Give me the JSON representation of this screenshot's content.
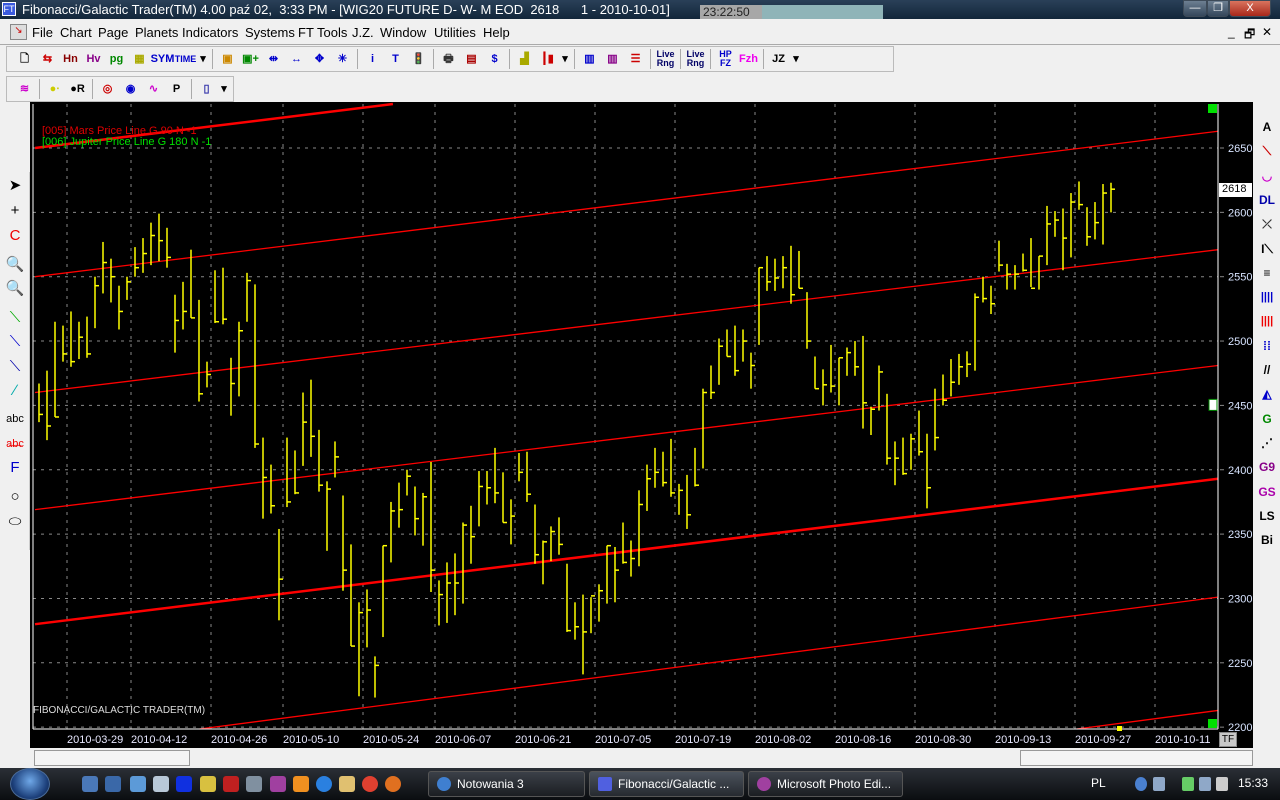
{
  "window": {
    "title": "Fibonacci/Galactic Trader(TM) 4.00 paź 02,  3:33 PM - [WIG20 FUTURE D- W- M EOD  2618      1 - 2010-10-01]",
    "clock": "23:22:50",
    "minimize": "—",
    "restore": "❐",
    "close": "X"
  },
  "menu": {
    "items": [
      "File",
      "Chart",
      "Page",
      "Planets",
      "Indicators",
      "Systems",
      "FT Tools",
      "J.Z.",
      "Window",
      "Utilities",
      "Help"
    ],
    "mdi_minimize": "_",
    "mdi_restore": "🗗",
    "mdi_close": "✕"
  },
  "toolbar1": [
    {
      "icon": "new-chart-icon",
      "glyph": "🗋",
      "color": "#000"
    },
    {
      "icon": "compare-icon",
      "glyph": "⇆",
      "color": "#c00"
    },
    {
      "icon": "hn-bars-icon",
      "glyph": "Hn",
      "color": "#800"
    },
    {
      "icon": "hv-bars-icon",
      "glyph": "Hv",
      "color": "#808"
    },
    {
      "icon": "page-icon",
      "glyph": "pg",
      "color": "#080"
    },
    {
      "icon": "grid-icon",
      "glyph": "▦",
      "color": "#aa0"
    },
    {
      "icon": "symbol-icon",
      "glyph": "SYM",
      "color": "#00c"
    },
    {
      "icon": "time-icon",
      "glyph": "TIME",
      "color": "#00c"
    },
    {
      "icon": "dropdown-icon",
      "glyph": "▾",
      "color": "#000"
    },
    {
      "sep": true
    },
    {
      "icon": "layers-icon",
      "glyph": "▣",
      "color": "#c80"
    },
    {
      "icon": "add-layer-icon",
      "glyph": "▣+",
      "color": "#080"
    },
    {
      "icon": "compress-icon",
      "glyph": "⇹",
      "color": "#00c"
    },
    {
      "icon": "expand-icon",
      "glyph": "↔",
      "color": "#00c"
    },
    {
      "icon": "move-icon",
      "glyph": "✥",
      "color": "#00c"
    },
    {
      "icon": "crosshair-icon",
      "glyph": "✳",
      "color": "#00c"
    },
    {
      "sep": true
    },
    {
      "icon": "info-icon",
      "glyph": "i",
      "color": "#00c"
    },
    {
      "icon": "text-icon",
      "glyph": "T",
      "color": "#00c"
    },
    {
      "icon": "traffic-light-icon",
      "glyph": "🚦",
      "color": "#333"
    },
    {
      "sep": true
    },
    {
      "icon": "print-icon",
      "glyph": "🖶",
      "color": "#333"
    },
    {
      "icon": "calendar-icon",
      "glyph": "▤",
      "color": "#a00"
    },
    {
      "icon": "dollar-icon",
      "glyph": "$",
      "color": "#00c"
    },
    {
      "sep": true
    },
    {
      "icon": "ruler-icon",
      "glyph": "▟",
      "color": "#aa0"
    },
    {
      "icon": "candle-icon",
      "glyph": "┃▮",
      "color": "#c00"
    },
    {
      "icon": "dropdown-icon",
      "glyph": "▾",
      "color": "#000"
    },
    {
      "sep": true
    },
    {
      "icon": "bar-chart-window-icon",
      "glyph": "▥",
      "color": "#00c"
    },
    {
      "icon": "bar-chart-window2-icon",
      "glyph": "▥",
      "color": "#808"
    },
    {
      "icon": "levels-icon",
      "glyph": "☰",
      "color": "#c00"
    },
    {
      "sep": true
    },
    {
      "icon": "live-range-red-icon",
      "glyph": "Live Rng",
      "color": "#006"
    },
    {
      "sep": true
    },
    {
      "icon": "live-range-blue-icon",
      "glyph": "Live Rng",
      "color": "#006"
    },
    {
      "sep": true
    },
    {
      "icon": "hp-fz-icon",
      "glyph": "HP FZ",
      "color": "#00c"
    },
    {
      "icon": "fzh-icon",
      "glyph": "Fzh",
      "color": "#e0e"
    },
    {
      "sep": true
    },
    {
      "icon": "jz-icon",
      "glyph": "JZ",
      "color": "#000"
    },
    {
      "icon": "dropdown-icon",
      "glyph": "▾",
      "color": "#000"
    }
  ],
  "toolbar2": [
    {
      "icon": "planet-lines-icon",
      "glyph": "≋",
      "color": "#c0c"
    },
    {
      "sep": true
    },
    {
      "icon": "planet-dots-icon",
      "glyph": "●∙",
      "color": "#cc0"
    },
    {
      "icon": "planet-r-icon",
      "glyph": "●R",
      "color": "#000"
    },
    {
      "sep": true
    },
    {
      "icon": "target-icon",
      "glyph": "◎",
      "color": "#c00"
    },
    {
      "icon": "wheel-icon",
      "glyph": "◉",
      "color": "#00c"
    },
    {
      "icon": "curves-icon",
      "glyph": "∿",
      "color": "#c0c"
    },
    {
      "icon": "p-curve-icon",
      "glyph": "P",
      "color": "#000"
    },
    {
      "sep": true
    },
    {
      "icon": "notepad-icon",
      "glyph": "▯",
      "color": "#33a"
    },
    {
      "icon": "dropdown-icon",
      "glyph": "▾",
      "color": "#000"
    }
  ],
  "left_toolbar": [
    {
      "icon": "pointer-icon",
      "glyph": "➤",
      "color": "#000"
    },
    {
      "icon": "crosshair-icon",
      "glyph": "+",
      "color": "#000"
    },
    {
      "icon": "magnet-icon",
      "glyph": "C",
      "color": "#e00"
    },
    {
      "icon": "zoom-in-icon",
      "glyph": "🔍",
      "color": "#036"
    },
    {
      "icon": "zoom-out-icon",
      "glyph": "🔍",
      "color": "#999"
    },
    {
      "icon": "trendline-green-icon",
      "glyph": "⟍",
      "color": "#0a0"
    },
    {
      "icon": "trendline-blue-icon",
      "glyph": "⟍",
      "color": "#00c"
    },
    {
      "icon": "trendline-angle-icon",
      "glyph": "⟍",
      "color": "#00a"
    },
    {
      "icon": "pencil-icon",
      "glyph": "∕",
      "color": "#0aa"
    },
    {
      "icon": "text-tool-icon",
      "glyph": "abc",
      "color": "#000"
    },
    {
      "icon": "delete-text-icon",
      "glyph": "a̶b̶c",
      "color": "#e00"
    },
    {
      "icon": "fibonacci-icon",
      "glyph": "F",
      "color": "#00c"
    },
    {
      "icon": "circle-icon",
      "glyph": "○",
      "color": "#000"
    },
    {
      "icon": "ellipse-icon",
      "glyph": "⬭",
      "color": "#000"
    }
  ],
  "right_toolbar": [
    {
      "icon": "angle-a-icon",
      "glyph": "A",
      "color": "#000"
    },
    {
      "icon": "gann-fan-icon",
      "glyph": "⟍",
      "color": "#c00"
    },
    {
      "icon": "arc-icon",
      "glyph": "◡",
      "color": "#c0c"
    },
    {
      "icon": "dl-icon",
      "glyph": "DL",
      "color": "#00a"
    },
    {
      "icon": "parallel-cross-icon",
      "glyph": "⤫",
      "color": "#333"
    },
    {
      "icon": "i-fan-icon",
      "glyph": "I⟍",
      "color": "#000"
    },
    {
      "icon": "horizontal-lines-icon",
      "glyph": "≡",
      "color": "#000"
    },
    {
      "icon": "vertical-lines-blue-icon",
      "glyph": "||||",
      "color": "#00c"
    },
    {
      "icon": "vertical-lines-red-icon",
      "glyph": "||||",
      "color": "#e00"
    },
    {
      "icon": "cycles-icon",
      "glyph": "⁞⁞",
      "color": "#00c"
    },
    {
      "icon": "parallel-lines-icon",
      "glyph": "//",
      "color": "#000"
    },
    {
      "icon": "triangle-icon",
      "glyph": "◭",
      "color": "#00c"
    },
    {
      "icon": "g-lines-icon",
      "glyph": "G",
      "color": "#080"
    },
    {
      "icon": "fan-icon",
      "glyph": "⋰",
      "color": "#000"
    },
    {
      "icon": "g9-icon",
      "glyph": "G9",
      "color": "#808"
    },
    {
      "icon": "gs-icon",
      "glyph": "GS",
      "color": "#a0a"
    },
    {
      "icon": "ls-icon",
      "glyph": "LS",
      "color": "#000"
    },
    {
      "icon": "bi-icon",
      "glyph": "Bi",
      "color": "#000"
    }
  ],
  "chart": {
    "legend": [
      {
        "text": "[005] Mars Price Line G 90 N -1",
        "color": "#e00000"
      },
      {
        "text": "[006] Jupiter Price Line G 180 N -1",
        "color": "#00e000"
      }
    ],
    "watermark": "FIBONACCI/GALACTIC TRADER(TM)",
    "last_price_label": "2618",
    "tf_button": "TF"
  },
  "chart_data": {
    "type": "ohlc-bar",
    "symbol": "WIG20 FUTURE",
    "bar_color": "#ffff00",
    "price_line_color": "#ff0000",
    "ylim": [
      2200,
      2650
    ],
    "y_ticks": [
      2200,
      2250,
      2300,
      2350,
      2400,
      2450,
      2500,
      2550,
      2600,
      2650
    ],
    "x_ticks": [
      {
        "label": "2010-03-29",
        "bar": 4
      },
      {
        "label": "2010-04-12",
        "bar": 12
      },
      {
        "label": "2010-04-26",
        "bar": 22
      },
      {
        "label": "2010-05-10",
        "bar": 31
      },
      {
        "label": "2010-05-24",
        "bar": 41
      },
      {
        "label": "2010-06-07",
        "bar": 50
      },
      {
        "label": "2010-06-21",
        "bar": 60
      },
      {
        "label": "2010-07-05",
        "bar": 70
      },
      {
        "label": "2010-07-19",
        "bar": 80
      },
      {
        "label": "2010-08-02",
        "bar": 90
      },
      {
        "label": "2010-08-16",
        "bar": 100
      },
      {
        "label": "2010-08-30",
        "bar": 110
      },
      {
        "label": "2010-09-13",
        "bar": 120
      },
      {
        "label": "2010-09-27",
        "bar": 130
      },
      {
        "label": "2010-10-11",
        "bar": 140
      }
    ],
    "grid": true,
    "bars_hlc": [
      [
        2467,
        2437,
        2443
      ],
      [
        2477,
        2423,
        2434
      ],
      [
        2515,
        2441,
        2441
      ],
      [
        2512,
        2484,
        2490
      ],
      [
        2523,
        2480,
        2484
      ],
      [
        2515,
        2486,
        2503
      ],
      [
        2519,
        2487,
        2490
      ],
      [
        2550,
        2510,
        2543
      ],
      [
        2577,
        2537,
        2561
      ],
      [
        2564,
        2530,
        2550
      ],
      [
        2543,
        2509,
        2523
      ],
      [
        2550,
        2532,
        2546
      ],
      [
        2573,
        2550,
        2557
      ],
      [
        2580,
        2553,
        2568
      ],
      [
        2592,
        2559,
        2582
      ],
      [
        2599,
        2562,
        2578
      ],
      [
        2588,
        2557,
        2565
      ],
      [
        2536,
        2491,
        2516
      ],
      [
        2546,
        2509,
        2523
      ],
      [
        2571,
        2518,
        2518
      ],
      [
        2532,
        2453,
        2459
      ],
      [
        2484,
        2464,
        2474
      ],
      [
        2555,
        2514,
        2515
      ],
      [
        2557,
        2513,
        2517
      ],
      [
        2487,
        2442,
        2467
      ],
      [
        2515,
        2457,
        2508
      ],
      [
        2553,
        2515,
        2547
      ],
      [
        2544,
        2417,
        2420
      ],
      [
        2425,
        2362,
        2394
      ],
      [
        2404,
        2366,
        2372
      ],
      [
        2354,
        2283,
        2315
      ],
      [
        2425,
        2371,
        2375
      ],
      [
        2415,
        2381,
        2382
      ],
      [
        2460,
        2403,
        2437
      ],
      [
        2470,
        2410,
        2426
      ],
      [
        2431,
        2383,
        2388
      ],
      [
        2391,
        2337,
        2385
      ],
      [
        2422,
        2394,
        2410
      ],
      [
        2380,
        2306,
        2322
      ],
      [
        2342,
        2263,
        2263
      ],
      [
        2297,
        2224,
        2289
      ],
      [
        2307,
        2262,
        2291
      ],
      [
        2255,
        2223,
        2248
      ],
      [
        2341,
        2270,
        2341
      ],
      [
        2375,
        2328,
        2368
      ],
      [
        2390,
        2355,
        2369
      ],
      [
        2400,
        2380,
        2395
      ],
      [
        2387,
        2349,
        2362
      ],
      [
        2382,
        2341,
        2379
      ],
      [
        2406,
        2305,
        2322
      ],
      [
        2314,
        2279,
        2303
      ],
      [
        2328,
        2281,
        2312
      ],
      [
        2335,
        2287,
        2312
      ],
      [
        2359,
        2296,
        2357
      ],
      [
        2372,
        2327,
        2348
      ],
      [
        2399,
        2356,
        2387
      ],
      [
        2399,
        2373,
        2386
      ],
      [
        2417,
        2374,
        2382
      ],
      [
        2398,
        2359,
        2359
      ],
      [
        2377,
        2342,
        2364
      ],
      [
        2413,
        2391,
        2398
      ],
      [
        2414,
        2375,
        2381
      ],
      [
        2373,
        2327,
        2334
      ],
      [
        2345,
        2311,
        2344
      ],
      [
        2356,
        2329,
        2352
      ],
      [
        2363,
        2334,
        2342
      ],
      [
        2327,
        2274,
        2275
      ],
      [
        2297,
        2268,
        2278
      ],
      [
        2303,
        2241,
        2274
      ],
      [
        2301,
        2273,
        2302
      ],
      [
        2311,
        2282,
        2306
      ],
      [
        2341,
        2296,
        2341
      ],
      [
        2340,
        2297,
        2322
      ],
      [
        2359,
        2327,
        2328
      ],
      [
        2345,
        2317,
        2331
      ],
      [
        2384,
        2325,
        2373
      ],
      [
        2404,
        2368,
        2393
      ],
      [
        2417,
        2386,
        2398
      ],
      [
        2414,
        2387,
        2390
      ],
      [
        2424,
        2379,
        2382
      ],
      [
        2389,
        2365,
        2384
      ],
      [
        2396,
        2354,
        2365
      ],
      [
        2417,
        2387,
        2388
      ],
      [
        2463,
        2401,
        2460
      ],
      [
        2481,
        2455,
        2460
      ],
      [
        2502,
        2466,
        2496
      ],
      [
        2509,
        2488,
        2488
      ],
      [
        2512,
        2473,
        2477
      ],
      [
        2509,
        2484,
        2500
      ],
      [
        2491,
        2463,
        2481
      ],
      [
        2557,
        2497,
        2557
      ],
      [
        2566,
        2539,
        2546
      ],
      [
        2564,
        2539,
        2549
      ],
      [
        2566,
        2541,
        2557
      ],
      [
        2574,
        2529,
        2536
      ],
      [
        2570,
        2541,
        2541
      ],
      [
        2538,
        2494,
        2500
      ],
      [
        2488,
        2463,
        2463
      ],
      [
        2478,
        2450,
        2466
      ],
      [
        2497,
        2460,
        2465
      ],
      [
        2487,
        2450,
        2487
      ],
      [
        2495,
        2473,
        2491
      ],
      [
        2500,
        2473,
        2480
      ],
      [
        2504,
        2432,
        2452
      ],
      [
        2449,
        2427,
        2447
      ],
      [
        2481,
        2446,
        2476
      ],
      [
        2459,
        2404,
        2409
      ],
      [
        2422,
        2388,
        2409
      ],
      [
        2425,
        2396,
        2397
      ],
      [
        2428,
        2400,
        2424
      ],
      [
        2446,
        2411,
        2414
      ],
      [
        2428,
        2370,
        2386
      ],
      [
        2463,
        2415,
        2425
      ],
      [
        2474,
        2450,
        2454
      ],
      [
        2486,
        2457,
        2468
      ],
      [
        2490,
        2466,
        2480
      ],
      [
        2492,
        2472,
        2482
      ],
      [
        2537,
        2477,
        2534
      ],
      [
        2550,
        2530,
        2533
      ],
      [
        2543,
        2521,
        2529
      ],
      [
        2578,
        2554,
        2559
      ],
      [
        2560,
        2540,
        2552
      ],
      [
        2559,
        2540,
        2552
      ],
      [
        2568,
        2554,
        2555
      ],
      [
        2580,
        2542,
        2541
      ],
      [
        2566,
        2540,
        2566
      ],
      [
        2605,
        2559,
        2591
      ],
      [
        2601,
        2581,
        2594
      ],
      [
        2603,
        2555,
        2580
      ],
      [
        2615,
        2565,
        2608
      ],
      [
        2624,
        2602,
        2606
      ],
      [
        2604,
        2574,
        2581
      ],
      [
        2608,
        2579,
        2592
      ],
      [
        2622,
        2575,
        2615
      ],
      [
        2623,
        2600,
        2618
      ]
    ],
    "price_lines": [
      {
        "from_price": 2650,
        "to_price": 2763,
        "thick": true
      },
      {
        "from_price": 2550,
        "to_price": 2663,
        "thick": false
      },
      {
        "from_price": 2460,
        "to_price": 2571,
        "thick": false
      },
      {
        "from_price": 2369,
        "to_price": 2481,
        "thick": false
      },
      {
        "from_price": 2280,
        "to_price": 2393,
        "thick": true
      },
      {
        "from_price": 2182,
        "to_price": 2301,
        "thick": false
      },
      {
        "from_price": 2092,
        "to_price": 2213,
        "thick": false
      }
    ]
  },
  "taskbar": {
    "tasks": [
      "Notowania 3",
      "Fibonacci/Galactic ...",
      "Microsoft Photo Edi..."
    ],
    "language": "PL",
    "clock": "15:33"
  }
}
